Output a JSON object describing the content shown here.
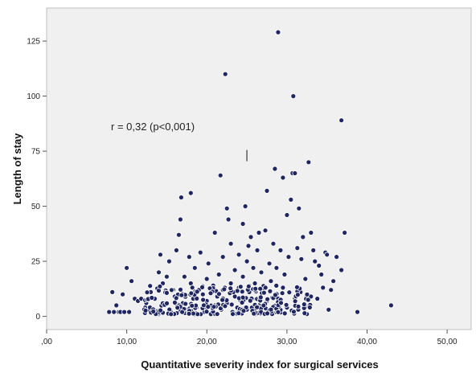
{
  "chart_data": {
    "type": "scatter",
    "title": "",
    "xlabel": "Quantitative severity index for surgical services",
    "ylabel": "Length of stay",
    "xlim": [
      0,
      53
    ],
    "ylim": [
      -6,
      140
    ],
    "x_ticks": [
      0,
      10,
      20,
      30,
      40,
      50
    ],
    "x_tick_labels": [
      ",00",
      "10,00",
      "20,00",
      "30,00",
      "40,00",
      "50,00"
    ],
    "y_ticks": [
      0,
      25,
      50,
      75,
      100,
      125
    ],
    "y_tick_labels": [
      "0",
      "25",
      "50",
      "75",
      "100",
      "125"
    ],
    "grid": false,
    "legend": "none",
    "annotation": "r = 0,32 (p<0,001)",
    "colors": {
      "plot_bg": "#f0f0f0",
      "point_fill": "#1f2660",
      "point_stroke": "#ffffff"
    },
    "marker_point": {
      "x": 25,
      "y": 73
    },
    "series": [
      {
        "points": [
          [
            7.8,
            2
          ],
          [
            8.2,
            11
          ],
          [
            8.4,
            2
          ],
          [
            8.7,
            5
          ],
          [
            9,
            2
          ],
          [
            9.2,
            2
          ],
          [
            9.5,
            10
          ],
          [
            9.7,
            2
          ],
          [
            10,
            22
          ],
          [
            10.3,
            2
          ],
          [
            10.6,
            16
          ],
          [
            11,
            8
          ],
          [
            11.4,
            7
          ],
          [
            11.8,
            8
          ],
          [
            12.3,
            4
          ],
          [
            12.8,
            3
          ],
          [
            13,
            11
          ],
          [
            13.5,
            8
          ],
          [
            14,
            20
          ],
          [
            14,
            1
          ],
          [
            14.2,
            28
          ],
          [
            14.5,
            15
          ],
          [
            14.8,
            5
          ],
          [
            15,
            18
          ],
          [
            15.3,
            25
          ],
          [
            15.5,
            2
          ],
          [
            15.8,
            12
          ],
          [
            16,
            9
          ],
          [
            16.2,
            30
          ],
          [
            16.5,
            37
          ],
          [
            16.7,
            44
          ],
          [
            16.8,
            54
          ],
          [
            17,
            6
          ],
          [
            17.2,
            18
          ],
          [
            17.5,
            3
          ],
          [
            17.8,
            27
          ],
          [
            18,
            15
          ],
          [
            18,
            56
          ],
          [
            18.3,
            8
          ],
          [
            18.5,
            22
          ],
          [
            18.7,
            4
          ],
          [
            19,
            12
          ],
          [
            19.2,
            29
          ],
          [
            19.5,
            10
          ],
          [
            19.7,
            2
          ],
          [
            20,
            17
          ],
          [
            20,
            7
          ],
          [
            20.2,
            24
          ],
          [
            20.5,
            1
          ],
          [
            20.8,
            14
          ],
          [
            21,
            38
          ],
          [
            21,
            5
          ],
          [
            21.3,
            9
          ],
          [
            21.5,
            19
          ],
          [
            21.7,
            64
          ],
          [
            21.8,
            3
          ],
          [
            22,
            27
          ],
          [
            22,
            12
          ],
          [
            22.3,
            110
          ],
          [
            22.5,
            49
          ],
          [
            22.5,
            6
          ],
          [
            22.7,
            44
          ],
          [
            23,
            33
          ],
          [
            23,
            15
          ],
          [
            23.2,
            2
          ],
          [
            23.5,
            21
          ],
          [
            23.5,
            9
          ],
          [
            23.8,
            4
          ],
          [
            24,
            28
          ],
          [
            24,
            13
          ],
          [
            24.2,
            7
          ],
          [
            24.5,
            42
          ],
          [
            24.5,
            18
          ],
          [
            24.8,
            50
          ],
          [
            25,
            25
          ],
          [
            25,
            3
          ],
          [
            25.2,
            32
          ],
          [
            25.3,
            11
          ],
          [
            25.5,
            36
          ],
          [
            25.7,
            8
          ],
          [
            25.8,
            22
          ],
          [
            26,
            15
          ],
          [
            26.2,
            1
          ],
          [
            26.3,
            30
          ],
          [
            26.5,
            38
          ],
          [
            26.5,
            5
          ],
          [
            26.8,
            20
          ],
          [
            27,
            12
          ],
          [
            27.3,
            39
          ],
          [
            27.5,
            57
          ],
          [
            27.5,
            7
          ],
          [
            27.8,
            24
          ],
          [
            28,
            16
          ],
          [
            28,
            3
          ],
          [
            28.3,
            33
          ],
          [
            28.5,
            67
          ],
          [
            28.5,
            10
          ],
          [
            28.7,
            22
          ],
          [
            28.9,
            129
          ],
          [
            29,
            6
          ],
          [
            29.2,
            30
          ],
          [
            29.5,
            63
          ],
          [
            29.5,
            13
          ],
          [
            29.7,
            19
          ],
          [
            30,
            46
          ],
          [
            30,
            4
          ],
          [
            30.2,
            27
          ],
          [
            30.5,
            53
          ],
          [
            30.7,
            65
          ],
          [
            30.8,
            100
          ],
          [
            31,
            65
          ],
          [
            31,
            8
          ],
          [
            31.3,
            31
          ],
          [
            31.5,
            49
          ],
          [
            31.7,
            11
          ],
          [
            31.8,
            26
          ],
          [
            32,
            36
          ],
          [
            32.3,
            17
          ],
          [
            32.5,
            5
          ],
          [
            32.7,
            70
          ],
          [
            33,
            38
          ],
          [
            33,
            9
          ],
          [
            33.3,
            30
          ],
          [
            33.5,
            25
          ],
          [
            33.8,
            8
          ],
          [
            34,
            23
          ],
          [
            34.3,
            19
          ],
          [
            34.5,
            13
          ],
          [
            34.8,
            29
          ],
          [
            35,
            28
          ],
          [
            35.2,
            3
          ],
          [
            35.5,
            12
          ],
          [
            35.8,
            16
          ],
          [
            36.2,
            27
          ],
          [
            36.8,
            89
          ],
          [
            36.8,
            21
          ],
          [
            37.2,
            38
          ],
          [
            38.8,
            2
          ],
          [
            43,
            5
          ]
        ]
      },
      {
        "band": {
          "x_min": 12,
          "x_max": 33,
          "y_min": 1,
          "y_max": 14,
          "count": 240
        }
      }
    ]
  }
}
